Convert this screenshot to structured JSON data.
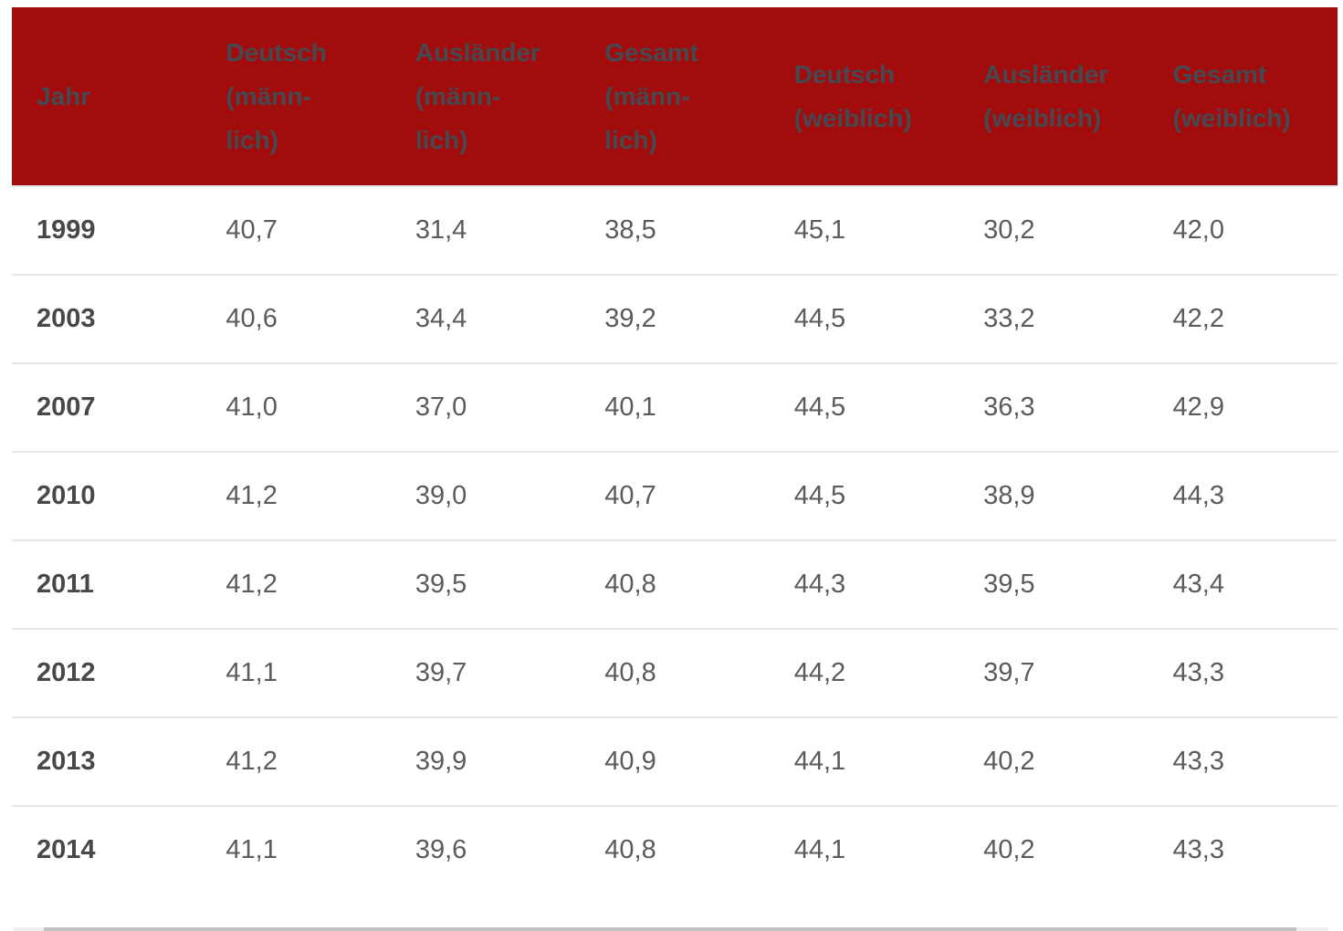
{
  "colors": {
    "header_background": "#a20c0d",
    "header_text": "#454a51",
    "year_text": "#47484a",
    "value_text": "#5a5b5e",
    "row_divider": "#e4e6e8",
    "scrollbar_track": "#efefef",
    "scrollbar_thumb": "#c1c1c1"
  },
  "table": {
    "header": [
      {
        "label": "Jahr",
        "lines": [
          "Jahr"
        ]
      },
      {
        "label": "Deutsch (männlich)",
        "lines": [
          "Deutsch",
          "(männ-",
          "lich)"
        ]
      },
      {
        "label": "Ausländer (männlich)",
        "lines": [
          "Ausländer",
          "(männ-",
          "lich)"
        ]
      },
      {
        "label": "Gesamt (männlich)",
        "lines": [
          "Gesamt",
          "(männ-",
          "lich)"
        ]
      },
      {
        "label": "Deutsch (weiblich)",
        "lines": [
          "Deutsch",
          "(weiblich)"
        ]
      },
      {
        "label": "Ausländer (weiblich)",
        "lines": [
          "Ausländer",
          "(weiblich)"
        ]
      },
      {
        "label": "Gesamt (weiblich)",
        "lines": [
          "Gesamt",
          "(weiblich)"
        ]
      }
    ],
    "rows": [
      {
        "year": "1999",
        "values": [
          "40,7",
          "31,4",
          "38,5",
          "45,1",
          "30,2",
          "42,0"
        ]
      },
      {
        "year": "2003",
        "values": [
          "40,6",
          "34,4",
          "39,2",
          "44,5",
          "33,2",
          "42,2"
        ]
      },
      {
        "year": "2007",
        "values": [
          "41,0",
          "37,0",
          "40,1",
          "44,5",
          "36,3",
          "42,9"
        ]
      },
      {
        "year": "2010",
        "values": [
          "41,2",
          "39,0",
          "40,7",
          "44,5",
          "38,9",
          "44,3"
        ]
      },
      {
        "year": "2011",
        "values": [
          "41,2",
          "39,5",
          "40,8",
          "44,3",
          "39,5",
          "43,4"
        ]
      },
      {
        "year": "2012",
        "values": [
          "41,1",
          "39,7",
          "40,8",
          "44,2",
          "39,7",
          "43,3"
        ]
      },
      {
        "year": "2013",
        "values": [
          "41,2",
          "39,9",
          "40,9",
          "44,1",
          "40,2",
          "43,3"
        ]
      },
      {
        "year": "2014",
        "values": [
          "41,1",
          "39,6",
          "40,8",
          "44,1",
          "40,2",
          "43,3"
        ]
      }
    ]
  },
  "chart_data": {
    "type": "table",
    "title": "",
    "xlabel": "Jahr",
    "categories": [
      "1999",
      "2003",
      "2007",
      "2010",
      "2011",
      "2012",
      "2013",
      "2014"
    ],
    "series": [
      {
        "name": "Deutsch (männlich)",
        "values": [
          40.7,
          40.6,
          41.0,
          41.2,
          41.2,
          41.1,
          41.2,
          41.1
        ]
      },
      {
        "name": "Ausländer (männlich)",
        "values": [
          31.4,
          34.4,
          37.0,
          39.0,
          39.5,
          39.7,
          39.9,
          39.6
        ]
      },
      {
        "name": "Gesamt (männlich)",
        "values": [
          38.5,
          39.2,
          40.1,
          40.7,
          40.8,
          40.8,
          40.9,
          40.8
        ]
      },
      {
        "name": "Deutsch (weiblich)",
        "values": [
          45.1,
          44.5,
          44.5,
          44.5,
          44.3,
          44.2,
          44.1,
          44.1
        ]
      },
      {
        "name": "Ausländer (weiblich)",
        "values": [
          30.2,
          33.2,
          36.3,
          38.9,
          39.5,
          39.7,
          40.2,
          40.2
        ]
      },
      {
        "name": "Gesamt (weiblich)",
        "values": [
          42.0,
          42.2,
          42.9,
          44.3,
          43.4,
          43.3,
          43.3,
          43.3
        ]
      }
    ]
  }
}
